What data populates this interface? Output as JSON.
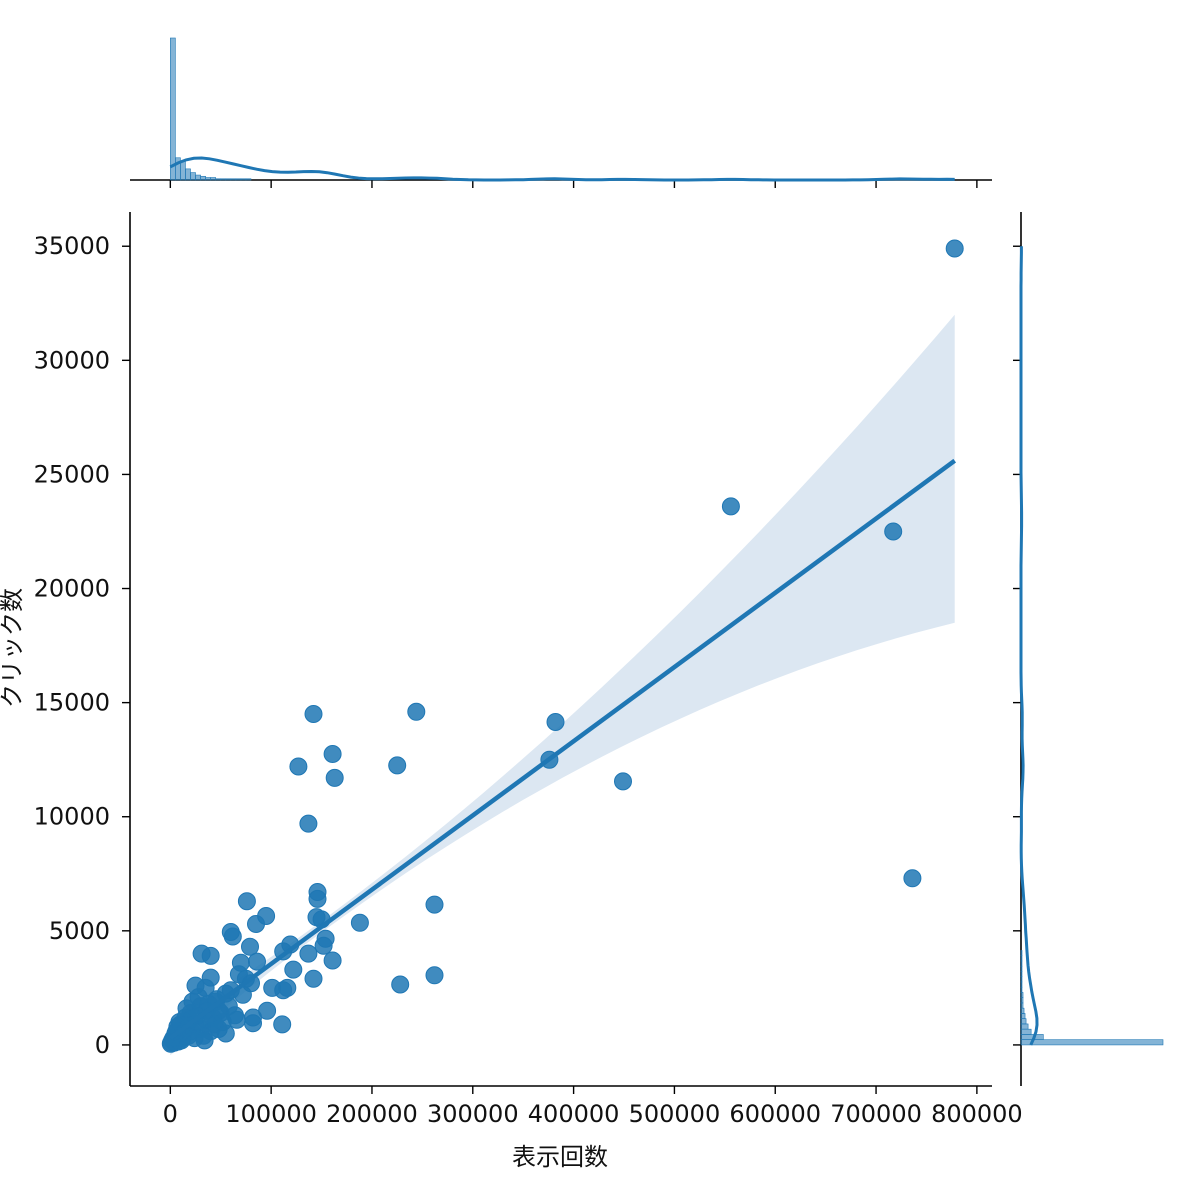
{
  "chart_data": {
    "type": "scatter",
    "title": "",
    "xlabel": "表示回数",
    "ylabel": "クリック数",
    "xlim": [
      -40000,
      815000
    ],
    "ylim": [
      -1800,
      36500
    ],
    "xticks": [
      0,
      100000,
      200000,
      300000,
      400000,
      500000,
      600000,
      700000,
      800000
    ],
    "yticks": [
      0,
      5000,
      10000,
      15000,
      20000,
      25000,
      30000,
      35000
    ],
    "grid": false,
    "color": "#1f77b4",
    "band_color": "#dce7f2",
    "points": [
      {
        "x": 778000,
        "y": 34900
      },
      {
        "x": 556000,
        "y": 23600
      },
      {
        "x": 717000,
        "y": 22500
      },
      {
        "x": 382000,
        "y": 14150
      },
      {
        "x": 376000,
        "y": 12500
      },
      {
        "x": 449000,
        "y": 11550
      },
      {
        "x": 736000,
        "y": 7300
      },
      {
        "x": 142000,
        "y": 14500
      },
      {
        "x": 244000,
        "y": 14600
      },
      {
        "x": 161000,
        "y": 12750
      },
      {
        "x": 127000,
        "y": 12200
      },
      {
        "x": 225000,
        "y": 12250
      },
      {
        "x": 163000,
        "y": 11700
      },
      {
        "x": 137000,
        "y": 9700
      },
      {
        "x": 146000,
        "y": 6700
      },
      {
        "x": 146000,
        "y": 6400
      },
      {
        "x": 262000,
        "y": 6150
      },
      {
        "x": 145000,
        "y": 5600
      },
      {
        "x": 150000,
        "y": 5500
      },
      {
        "x": 188000,
        "y": 5350
      },
      {
        "x": 154000,
        "y": 4650
      },
      {
        "x": 152000,
        "y": 4350
      },
      {
        "x": 161000,
        "y": 3700
      },
      {
        "x": 137000,
        "y": 4000
      },
      {
        "x": 142000,
        "y": 2900
      },
      {
        "x": 262000,
        "y": 3050
      },
      {
        "x": 228000,
        "y": 2650
      },
      {
        "x": 76000,
        "y": 6300
      },
      {
        "x": 95000,
        "y": 5650
      },
      {
        "x": 60000,
        "y": 4950
      },
      {
        "x": 62000,
        "y": 4750
      },
      {
        "x": 85000,
        "y": 5300
      },
      {
        "x": 119000,
        "y": 4400
      },
      {
        "x": 112000,
        "y": 4100
      },
      {
        "x": 31000,
        "y": 4000
      },
      {
        "x": 40000,
        "y": 3900
      },
      {
        "x": 70000,
        "y": 3600
      },
      {
        "x": 79000,
        "y": 4300
      },
      {
        "x": 86000,
        "y": 3650
      },
      {
        "x": 122000,
        "y": 3300
      },
      {
        "x": 68000,
        "y": 3100
      },
      {
        "x": 75000,
        "y": 2900
      },
      {
        "x": 40000,
        "y": 2950
      },
      {
        "x": 80000,
        "y": 2700
      },
      {
        "x": 101000,
        "y": 2500
      },
      {
        "x": 112000,
        "y": 2400
      },
      {
        "x": 116000,
        "y": 2500
      },
      {
        "x": 60000,
        "y": 2400
      },
      {
        "x": 55000,
        "y": 2250
      },
      {
        "x": 72000,
        "y": 2200
      },
      {
        "x": 35000,
        "y": 2500
      },
      {
        "x": 96000,
        "y": 1500
      },
      {
        "x": 82000,
        "y": 1200
      },
      {
        "x": 66000,
        "y": 1100
      },
      {
        "x": 111000,
        "y": 900
      },
      {
        "x": 82000,
        "y": 950
      },
      {
        "x": 25000,
        "y": 2600
      },
      {
        "x": 45000,
        "y": 1900
      },
      {
        "x": 50000,
        "y": 1400
      },
      {
        "x": 48000,
        "y": 700
      },
      {
        "x": 30000,
        "y": 1700
      },
      {
        "x": 20000,
        "y": 1400
      },
      {
        "x": 15000,
        "y": 1200
      },
      {
        "x": 10000,
        "y": 900
      },
      {
        "x": 5000,
        "y": 500
      },
      {
        "x": 2000,
        "y": 200
      },
      {
        "x": 500,
        "y": 50
      },
      {
        "x": 25000,
        "y": 900
      },
      {
        "x": 35000,
        "y": 1100
      },
      {
        "x": 40000,
        "y": 600
      },
      {
        "x": 18000,
        "y": 400
      },
      {
        "x": 12000,
        "y": 300
      },
      {
        "x": 8000,
        "y": 150
      },
      {
        "x": 30000,
        "y": 700
      },
      {
        "x": 22000,
        "y": 1900
      },
      {
        "x": 28000,
        "y": 2100
      },
      {
        "x": 36000,
        "y": 1500
      },
      {
        "x": 42000,
        "y": 1200
      },
      {
        "x": 46000,
        "y": 2000
      },
      {
        "x": 52000,
        "y": 1000
      },
      {
        "x": 58000,
        "y": 1700
      },
      {
        "x": 64000,
        "y": 1300
      },
      {
        "x": 15000,
        "y": 700
      },
      {
        "x": 6000,
        "y": 600
      },
      {
        "x": 3000,
        "y": 300
      },
      {
        "x": 9000,
        "y": 1000
      },
      {
        "x": 13000,
        "y": 500
      },
      {
        "x": 19000,
        "y": 1100
      },
      {
        "x": 24000,
        "y": 300
      },
      {
        "x": 33000,
        "y": 400
      },
      {
        "x": 38000,
        "y": 1800
      },
      {
        "x": 44000,
        "y": 900
      },
      {
        "x": 16000,
        "y": 1600
      },
      {
        "x": 27000,
        "y": 1300
      },
      {
        "x": 11000,
        "y": 200
      },
      {
        "x": 4000,
        "y": 100
      },
      {
        "x": 7000,
        "y": 800
      },
      {
        "x": 21000,
        "y": 600
      },
      {
        "x": 1000,
        "y": 100
      },
      {
        "x": 55000,
        "y": 500
      },
      {
        "x": 48000,
        "y": 1500
      },
      {
        "x": 34000,
        "y": 200
      }
    ],
    "regression": {
      "x_start": 0,
      "x_end": 778000,
      "y_start": 300,
      "y_end": 25600
    },
    "ci": {
      "upper_end": 32000,
      "lower_end": 18500,
      "narrow_x": 150000
    },
    "top_hist": {
      "bin_width": 5000,
      "counts": [
        115,
        18,
        15,
        9,
        6,
        4,
        3,
        2,
        2,
        1,
        1,
        1,
        1,
        1,
        1,
        1
      ]
    },
    "right_hist": {
      "bin_width": 230,
      "counts": [
        140,
        22,
        10,
        7,
        5,
        4,
        3,
        2,
        2,
        2,
        1,
        1,
        1,
        1,
        1,
        1,
        1,
        1
      ]
    }
  }
}
